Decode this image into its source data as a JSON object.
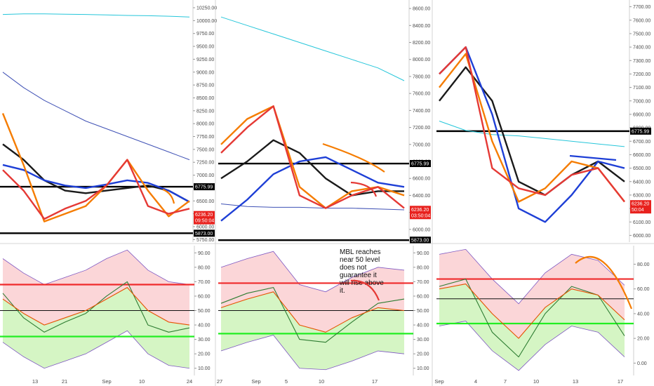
{
  "chart_data": [
    {
      "type": "line",
      "panel": "left-price",
      "y_ticks": [
        "10250.00",
        "10000.00",
        "9750.00",
        "9500.00",
        "9250.00",
        "9000.00",
        "8750.00",
        "8500.00",
        "8250.00",
        "8000.00",
        "7750.00",
        "7500.00",
        "7250.00",
        "7000.00",
        "6750.00",
        "6500.00",
        "6250.00",
        "6000.00",
        "5750.00"
      ],
      "y_tick_values": [
        10250,
        10000,
        9750,
        9500,
        9250,
        9000,
        8750,
        8500,
        8250,
        8000,
        7750,
        7500,
        7250,
        7000,
        6750,
        6500,
        6250,
        6000,
        5750
      ],
      "ylim": [
        5700,
        10400
      ],
      "x_ticks": [
        "13",
        "21",
        "Sep",
        "10",
        "24"
      ],
      "horizontal_levels": [
        {
          "value": 6775,
          "label": "6775.99"
        },
        {
          "value": 5873,
          "label": "5873.00"
        }
      ],
      "price_tags": [
        {
          "value": 6236,
          "label": "6236.20",
          "sub": "09:50:04"
        }
      ],
      "series": [
        {
          "color": "#26c6da",
          "values": [
            10120,
            10130,
            10130,
            10125,
            10120,
            10110,
            10100,
            10095,
            10085,
            10070
          ]
        },
        {
          "color": "#3f51b5",
          "values": [
            9000,
            8700,
            8450,
            8250,
            8050,
            7900,
            7750,
            7600,
            7450,
            7300
          ]
        },
        {
          "color": "#1a1a1a",
          "values": [
            7600,
            7300,
            6900,
            6700,
            6650,
            6700,
            6750,
            6800,
            6700,
            6480
          ]
        },
        {
          "color": "#1e3fd6",
          "values": [
            7200,
            7100,
            6900,
            6800,
            6750,
            6820,
            6900,
            6850,
            6700,
            6480
          ]
        },
        {
          "color": "#f57c00",
          "values": [
            8200,
            7200,
            6100,
            6250,
            6400,
            6800,
            7300,
            6700,
            6200,
            6500
          ]
        },
        {
          "color": "#e53935",
          "values": [
            7100,
            6700,
            6150,
            6350,
            6500,
            6800,
            7300,
            6400,
            6250,
            6350
          ]
        }
      ]
    },
    {
      "type": "line",
      "panel": "middle-price",
      "y_ticks": [
        "8600.00",
        "8400.00",
        "8200.00",
        "8000.00",
        "7800.00",
        "7600.00",
        "7400.00",
        "7200.00",
        "7000.00",
        "6800.00",
        "6600.00",
        "6400.00",
        "6200.00",
        "6000.00"
      ],
      "y_tick_values": [
        8600,
        8400,
        8200,
        8000,
        7800,
        7600,
        7400,
        7200,
        7000,
        6800,
        6600,
        6400,
        6200,
        6000
      ],
      "ylim": [
        5850,
        8700
      ],
      "x_ticks": [
        "27",
        "Sep",
        "5",
        "10",
        "17"
      ],
      "horizontal_levels": [
        {
          "value": 6775,
          "label": "6775.99"
        },
        {
          "value": 5873,
          "label": "5873.00"
        }
      ],
      "price_tags": [
        {
          "value": 6236,
          "label": "6236.20",
          "sub": "03:50:04"
        }
      ],
      "series": [
        {
          "color": "#26c6da",
          "values": [
            8500,
            8400,
            8300,
            8200,
            8100,
            8000,
            7900,
            7750
          ]
        },
        {
          "color": "#3f51b5",
          "values": [
            6300,
            6270,
            6260,
            6260,
            6250,
            6250,
            6240,
            6230
          ]
        },
        {
          "color": "#1a1a1a",
          "values": [
            6600,
            6800,
            7050,
            6900,
            6600,
            6400,
            6450,
            6450
          ]
        },
        {
          "color": "#1e3fd6",
          "values": [
            6100,
            6350,
            6650,
            6800,
            6850,
            6700,
            6550,
            6500
          ]
        },
        {
          "color": "#f57c00",
          "values": [
            7000,
            7300,
            7450,
            6500,
            6250,
            6450,
            6500,
            6400
          ]
        },
        {
          "color": "#e53935",
          "values": [
            6900,
            7200,
            7450,
            6400,
            6250,
            6400,
            6500,
            6250
          ]
        }
      ]
    },
    {
      "type": "line",
      "panel": "right-price",
      "y_ticks": [
        "7700.00",
        "7600.00",
        "7500.00",
        "7400.00",
        "7300.00",
        "7200.00",
        "7100.00",
        "7000.00",
        "6900.00",
        "6800.00",
        "6700.00",
        "6600.00",
        "6500.00",
        "6400.00",
        "6300.00",
        "6200.00",
        "6100.00",
        "6000.00"
      ],
      "y_tick_values": [
        7700,
        7600,
        7500,
        7400,
        7300,
        7200,
        7100,
        7000,
        6900,
        6800,
        6700,
        6600,
        6500,
        6400,
        6300,
        6200,
        6100,
        6000
      ],
      "ylim": [
        5950,
        7750
      ],
      "x_ticks": [
        "Sep",
        "4",
        "7",
        "10",
        "13",
        "17"
      ],
      "horizontal_levels": [
        {
          "value": 6775,
          "label": "6775.99"
        }
      ],
      "price_tags": [
        {
          "value": 6236,
          "label": "6236.20",
          "sub": "50:04"
        }
      ],
      "series": [
        {
          "color": "#26c6da",
          "values": [
            6850,
            6780,
            6750,
            6740,
            6720,
            6700,
            6680,
            6660
          ]
        },
        {
          "color": "#1a1a1a",
          "values": [
            7000,
            7250,
            7000,
            6400,
            6300,
            6450,
            6550,
            6400
          ]
        },
        {
          "color": "#1e3fd6",
          "values": [
            7200,
            7400,
            6900,
            6200,
            6100,
            6300,
            6550,
            6500
          ]
        },
        {
          "color": "#f57c00",
          "values": [
            7100,
            7350,
            6700,
            6250,
            6350,
            6550,
            6500,
            6250
          ]
        },
        {
          "color": "#e53935",
          "values": [
            7200,
            7400,
            6500,
            6350,
            6300,
            6450,
            6500,
            6250
          ]
        }
      ]
    },
    {
      "type": "area",
      "panel": "left-oscillator",
      "y_ticks": [
        "90.00",
        "80.00",
        "70.00",
        "60.00",
        "50.00",
        "40.00",
        "30.00",
        "20.00",
        "10.00"
      ],
      "y_tick_values": [
        90,
        80,
        70,
        60,
        50,
        40,
        30,
        20,
        10
      ],
      "ylim": [
        5,
        95
      ],
      "horizontal_levels": [
        {
          "value": 68,
          "color": "red"
        },
        {
          "value": 50,
          "color": "black"
        },
        {
          "value": 32,
          "color": "green"
        }
      ],
      "series": [
        {
          "color": "#2e7d32",
          "values": [
            62,
            45,
            35,
            42,
            48,
            60,
            70,
            40,
            35,
            38
          ]
        },
        {
          "color": "#e65100",
          "values": [
            58,
            48,
            40,
            45,
            50,
            58,
            66,
            50,
            42,
            40
          ]
        }
      ]
    },
    {
      "type": "area",
      "panel": "middle-oscillator",
      "y_ticks": [
        "90.00",
        "80.00",
        "70.00",
        "60.00",
        "50.00",
        "40.00",
        "30.00",
        "20.00",
        "10.00"
      ],
      "y_tick_values": [
        90,
        80,
        70,
        60,
        50,
        40,
        30,
        20,
        10
      ],
      "ylim": [
        5,
        95
      ],
      "horizontal_levels": [
        {
          "value": 69,
          "color": "red"
        },
        {
          "value": 50,
          "color": "black"
        },
        {
          "value": 34,
          "color": "green"
        }
      ],
      "annotations": [
        "MBL reaches near 50 level does not guarantee it will rise above it."
      ],
      "series": [
        {
          "color": "#2e7d32",
          "values": [
            55,
            62,
            66,
            30,
            28,
            42,
            55,
            58
          ]
        },
        {
          "color": "#e65100",
          "values": [
            52,
            58,
            63,
            40,
            35,
            45,
            52,
            50
          ]
        }
      ]
    },
    {
      "type": "area",
      "panel": "right-oscillator",
      "y_ticks": [
        "80.00",
        "60.00",
        "40.00",
        "20.00",
        "0.00"
      ],
      "y_tick_values": [
        80,
        60,
        40,
        20,
        0
      ],
      "ylim": [
        -10,
        95
      ],
      "horizontal_levels": [
        {
          "value": 68,
          "color": "red"
        },
        {
          "value": 52,
          "color": "black"
        },
        {
          "value": 32,
          "color": "green"
        }
      ],
      "series": [
        {
          "color": "#2e7d32",
          "values": [
            62,
            68,
            25,
            5,
            40,
            62,
            55,
            22
          ]
        },
        {
          "color": "#e65100",
          "values": [
            60,
            64,
            40,
            20,
            45,
            60,
            55,
            35
          ]
        }
      ]
    }
  ]
}
